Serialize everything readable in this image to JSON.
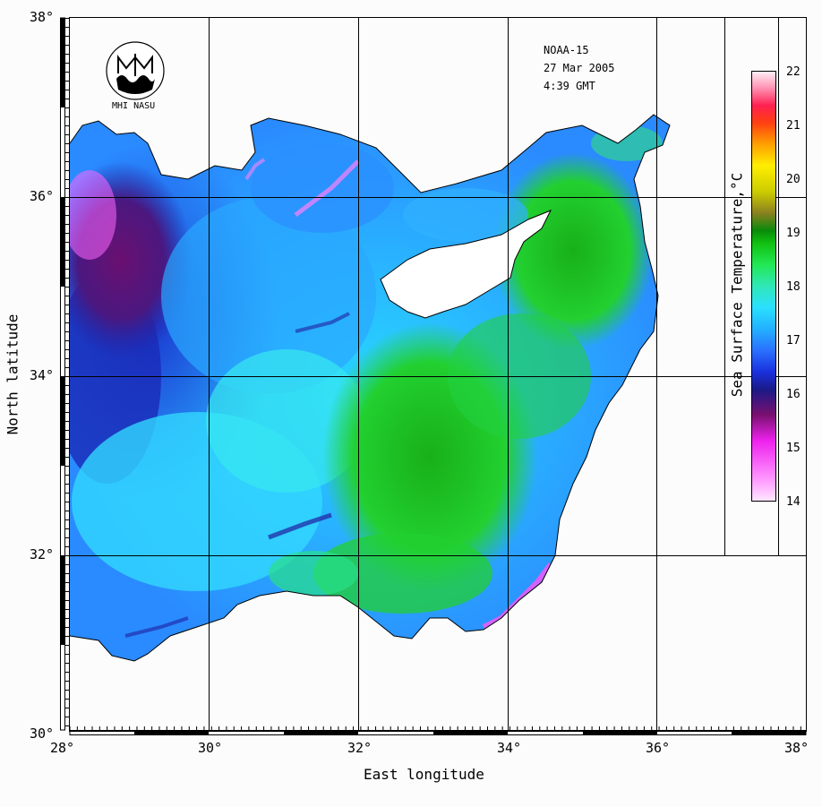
{
  "satellite": "NOAA-15",
  "date": "27 Mar 2005",
  "time": "4:39 GMT",
  "logo_text": "MHI NASU",
  "x_axis_title": "East longitude",
  "y_axis_title": "North latitude",
  "colorbar_title": "Sea Surface Temperature,°C",
  "x_ticks": [
    "28°",
    "30°",
    "32°",
    "34°",
    "36°",
    "38°"
  ],
  "y_ticks": [
    "38°",
    "36°",
    "34°",
    "32°",
    "30°"
  ],
  "colorbar_ticks": [
    "22",
    "21",
    "20",
    "19",
    "18",
    "17",
    "16",
    "15",
    "14"
  ],
  "colors": {
    "land": "#ffffff",
    "frame": "#000000",
    "background": "#fcfcfc",
    "sst_low": "#ff66ff",
    "sst_mid_low": "#1a1acc",
    "sst_mid": "#2ad8ff",
    "sst_mid_high": "#22dd22",
    "sst_high": "#ffffff"
  }
}
